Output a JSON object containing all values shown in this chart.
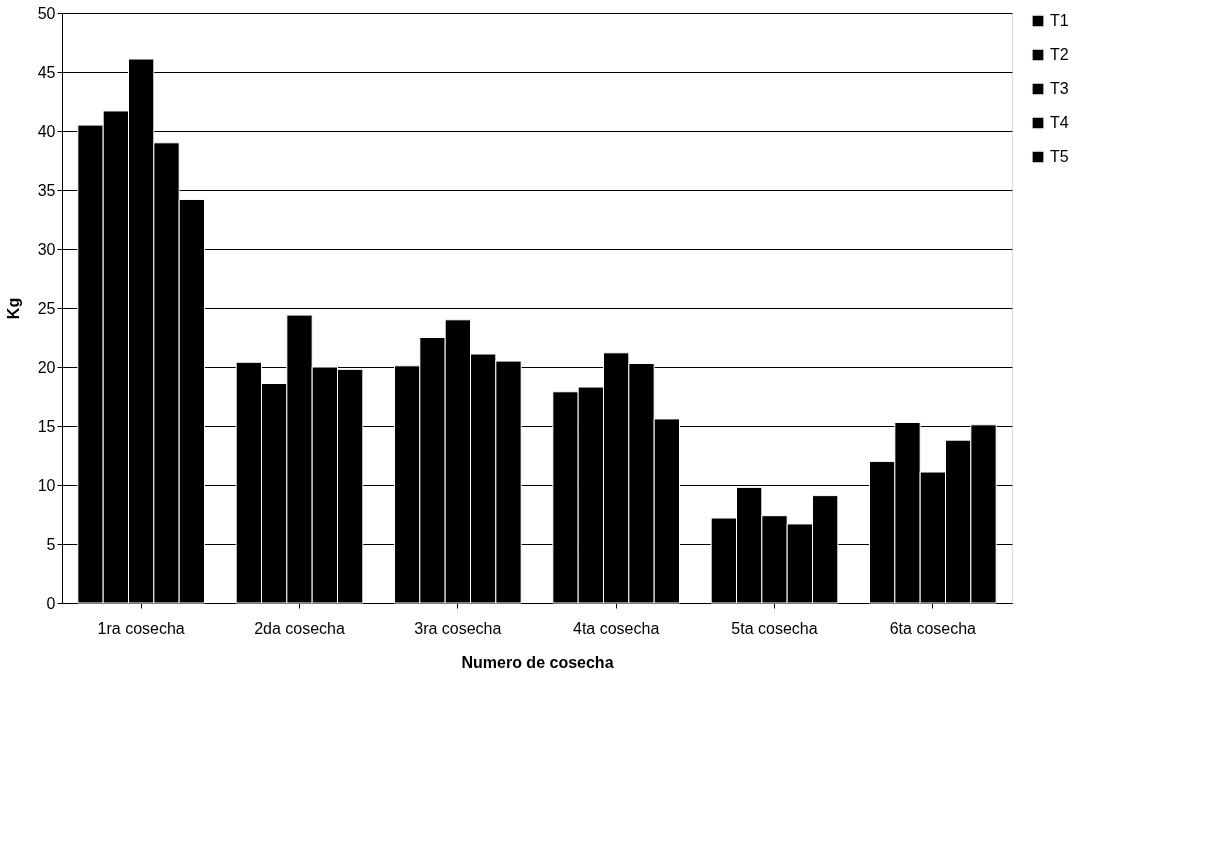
{
  "chart_data": {
    "type": "bar",
    "xlabel": "Numero de cosecha",
    "ylabel": "Kg",
    "categories": [
      "1ra cosecha",
      "2da cosecha",
      "3ra cosecha",
      "4ta cosecha",
      "5ta cosecha",
      "6ta cosecha"
    ],
    "series": [
      {
        "name": "T1",
        "color": "#000000",
        "values": [
          40.5,
          20.4,
          20.1,
          17.9,
          7.2,
          12.0
        ]
      },
      {
        "name": "T2",
        "color": "#000000",
        "values": [
          41.7,
          18.6,
          22.5,
          18.3,
          9.8,
          15.3
        ]
      },
      {
        "name": "T3",
        "color": "#000000",
        "values": [
          46.1,
          24.4,
          24.0,
          21.2,
          7.4,
          11.1
        ]
      },
      {
        "name": "T4",
        "color": "#000000",
        "values": [
          39.0,
          20.0,
          21.1,
          20.3,
          6.7,
          13.8
        ]
      },
      {
        "name": "T5",
        "color": "#000000",
        "values": [
          34.2,
          19.8,
          20.5,
          15.6,
          9.1,
          15.1
        ]
      }
    ],
    "ylim": [
      0,
      50
    ],
    "yticks": [
      0,
      5,
      10,
      15,
      20,
      25,
      30,
      35,
      40,
      45,
      50
    ],
    "grid": "y",
    "legend": "right"
  }
}
